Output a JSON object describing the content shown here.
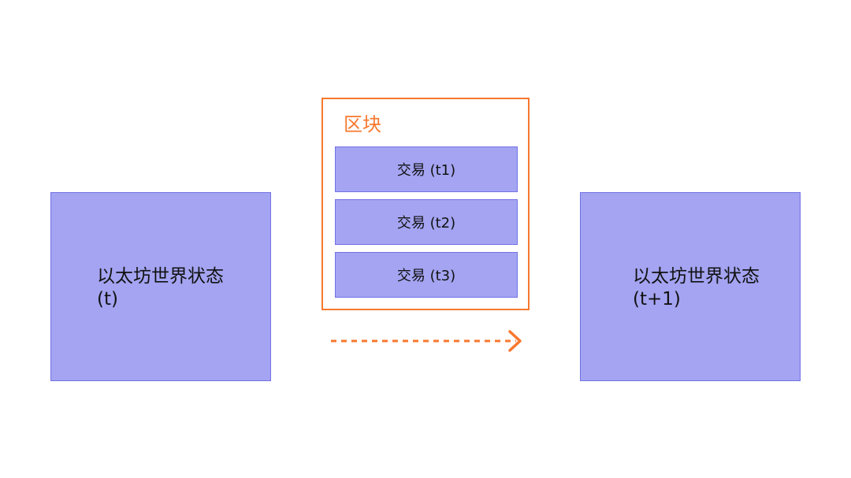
{
  "state_before": {
    "line1": "以太坊世界状态",
    "line2": "(t)"
  },
  "state_after": {
    "line1": "以太坊世界状态",
    "line2": "(t+1)"
  },
  "block": {
    "title": "区块",
    "transactions": [
      "交易 (t1)",
      "交易 (t2)",
      "交易 (t3)"
    ]
  },
  "colors": {
    "box_fill": "#a4a4f2",
    "box_border": "#7272e6",
    "accent": "#f7782e"
  }
}
